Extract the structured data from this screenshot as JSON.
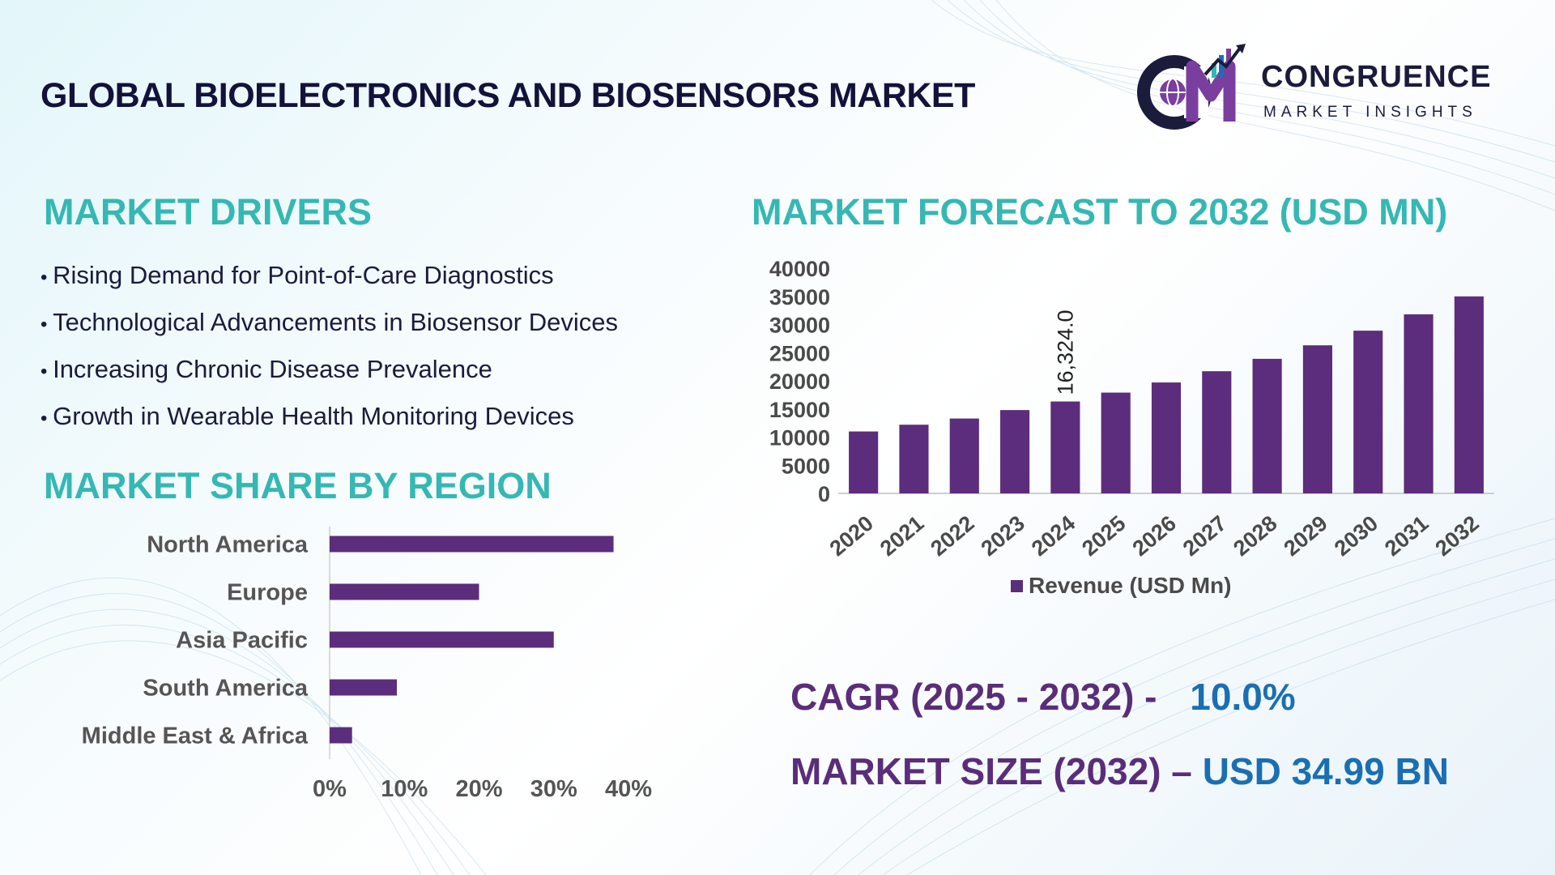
{
  "header": {
    "title": "GLOBAL BIOELECTRONICS AND BIOSENSORS MARKET",
    "logo_main": "CONGRUENCE",
    "logo_sub": "MARKET INSIGHTS"
  },
  "drivers": {
    "title": "MARKET DRIVERS",
    "items": [
      "Rising Demand for Point-of-Care Diagnostics",
      "Technological Advancements in Biosensor Devices",
      "Increasing Chronic Disease Prevalence",
      "Growth in Wearable Health Monitoring Devices"
    ]
  },
  "forecast": {
    "title": "MARKET FORECAST TO 2032 (USD MN)"
  },
  "region": {
    "title": "MARKET SHARE BY REGION"
  },
  "stats": {
    "cagr_label": "CAGR (2025 - 2032) -",
    "cagr_value": "10.0%",
    "size_label": "MARKET SIZE (2032) –",
    "size_value": "USD 34.99 BN"
  },
  "colors": {
    "bar": "#5c2d7c",
    "teal": "#35b8b3",
    "navy": "#12123a",
    "blue": "#1a6fb3"
  },
  "chart_data": [
    {
      "type": "bar",
      "categories": [
        "2020",
        "2021",
        "2022",
        "2023",
        "2024",
        "2025",
        "2026",
        "2027",
        "2028",
        "2029",
        "2030",
        "2031",
        "2032"
      ],
      "series": [
        {
          "name": "Revenue (USD Mn)",
          "values": [
            11000,
            12200,
            13300,
            14800,
            16324,
            17900,
            19700,
            21700,
            23900,
            26300,
            28900,
            31800,
            34990
          ]
        }
      ],
      "data_labels": [
        {
          "index": 4,
          "text": "16,324.0"
        }
      ],
      "yticks": [
        0,
        5000,
        10000,
        15000,
        20000,
        25000,
        30000,
        35000,
        40000
      ],
      "ylim": [
        0,
        40000
      ],
      "legend": "bottom",
      "grid": false
    },
    {
      "type": "bar",
      "orientation": "horizontal",
      "categories": [
        "North America",
        "Europe",
        "Asia Pacific",
        "South America",
        "Middle East & Africa"
      ],
      "values": [
        38,
        20,
        30,
        9,
        3
      ],
      "xticks": [
        "0%",
        "10%",
        "20%",
        "30%",
        "40%"
      ],
      "xlim": [
        0,
        40
      ],
      "grid": false
    }
  ]
}
